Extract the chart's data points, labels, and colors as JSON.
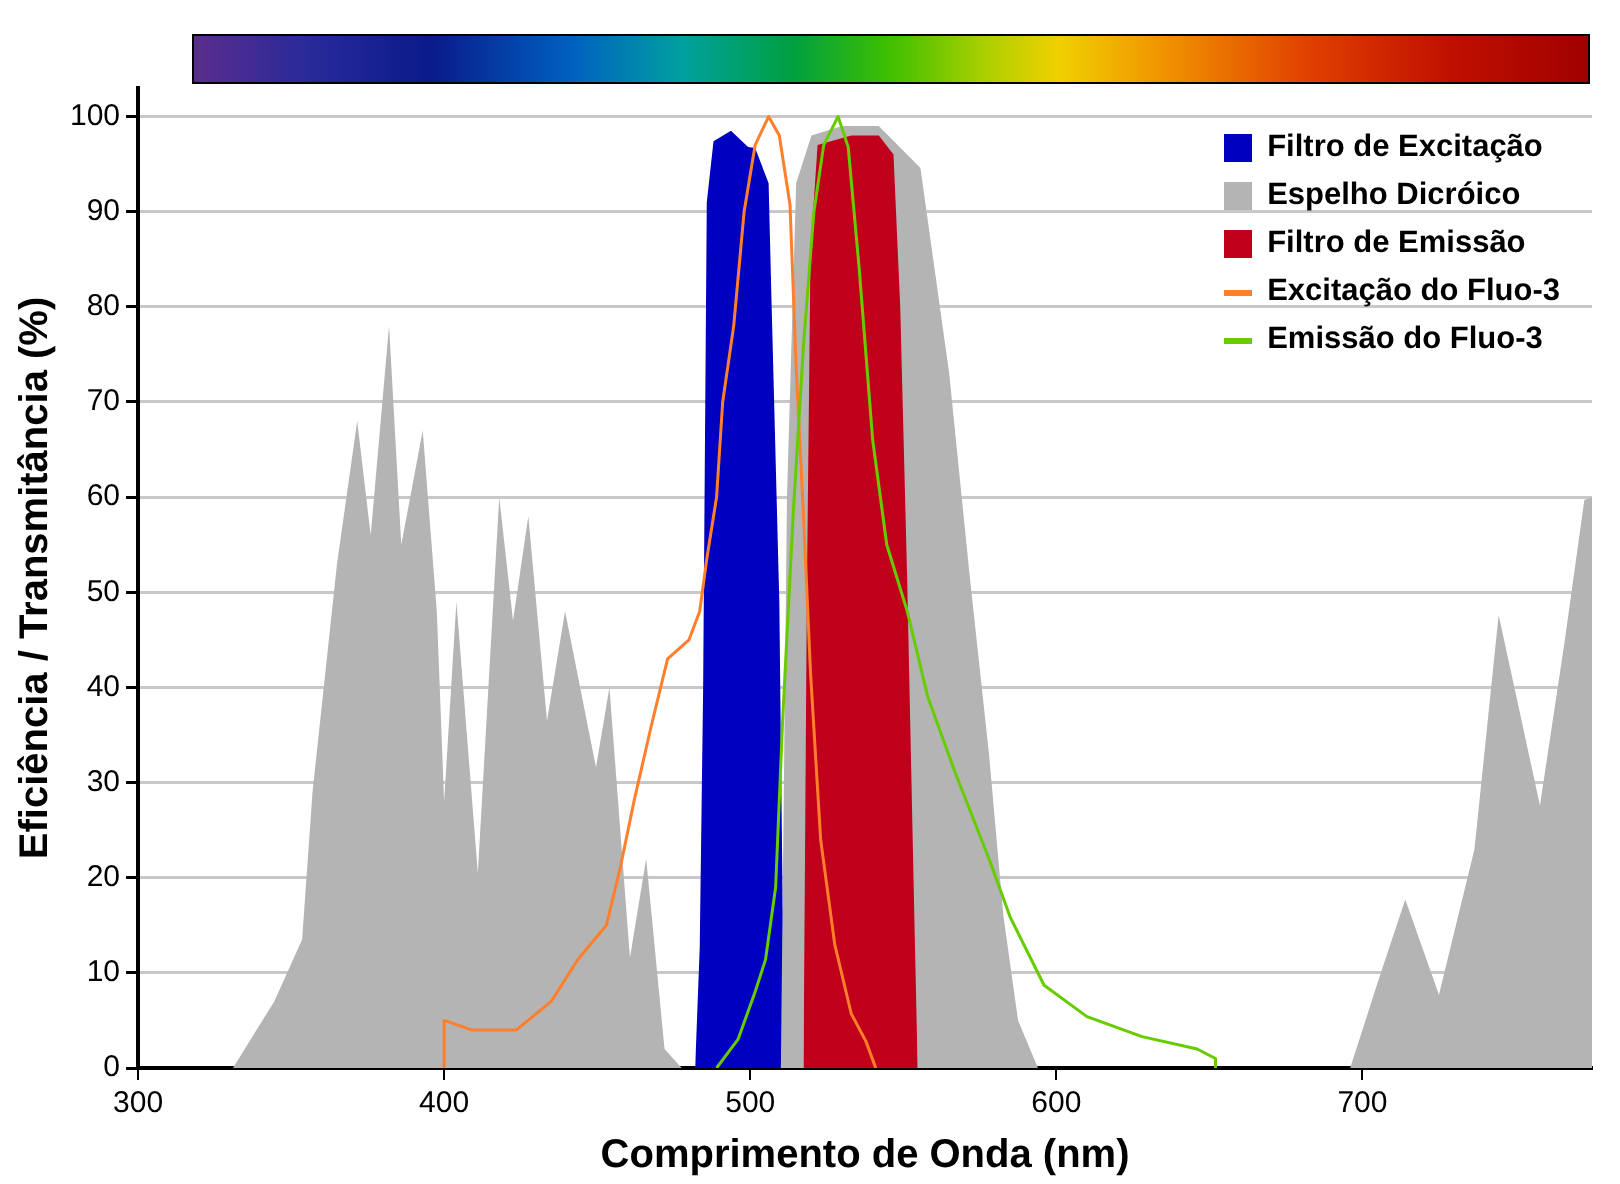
{
  "chart_data": {
    "type": "area",
    "xlabel": "Comprimento de Onda (nm)",
    "ylabel": "Eficiência / Transmitância (%)",
    "xlim": [
      300,
      775
    ],
    "xticks": [
      300,
      400,
      500,
      600,
      700
    ],
    "ylim": [
      0,
      103
    ],
    "yticks": [
      0,
      10,
      20,
      30,
      40,
      50,
      60,
      70,
      80,
      90,
      100
    ],
    "grid": "y",
    "legend": "top right",
    "series": [
      {
        "name": "Filtro de Excitação",
        "color": "#0000c0",
        "x": [
          482,
          483.5,
          484.6,
          485.8,
          488,
          493.7,
          499.3,
          501.6,
          506,
          507,
          509.5,
          510.6,
          513
        ],
        "values": [
          0,
          12.7,
          39.7,
          91,
          97.4,
          98.5,
          96.8,
          96.7,
          93,
          80,
          49,
          17,
          0
        ]
      },
      {
        "name": "Espelho Dicróico",
        "color": "#b4b4b4",
        "x": [
          331,
          344.5,
          353.6,
          357,
          365,
          371.6,
          376,
          382,
          386,
          393,
          397.6,
          400,
          404,
          411,
          418,
          422.5,
          427.5,
          433.6,
          439.5,
          449.6,
          454,
          460.7,
          466,
          472,
          477.6,
          510,
          512,
          515,
          520,
          530,
          542,
          555.6,
          565,
          571.6,
          578,
          582.7,
          587.5,
          594,
          696,
          705,
          714,
          725,
          736.6,
          744.5,
          758,
          766,
          772.5,
          775
        ],
        "values": [
          0,
          7,
          13.5,
          29,
          53,
          68,
          56,
          78,
          55,
          67,
          48,
          28,
          49,
          20.5,
          60,
          47,
          58,
          36.5,
          48,
          31.6,
          40,
          11.6,
          22,
          2,
          0,
          0,
          60,
          93,
          98,
          99,
          99,
          94.6,
          73,
          52,
          33,
          16,
          5,
          0,
          0,
          9,
          17.7,
          7.7,
          23,
          47.6,
          27.6,
          44.7,
          59.7,
          60
        ]
      },
      {
        "name": "Filtro de Emissão",
        "color": "#c0001a",
        "x": [
          517.4,
          518.5,
          519.7,
          522,
          533,
          542,
          546.8,
          549,
          551.3,
          553.6,
          554.7
        ],
        "values": [
          0,
          50,
          86,
          97,
          98,
          98,
          96,
          80,
          51,
          16,
          0
        ]
      },
      {
        "name": "Excitação do Fluo-3",
        "type": "line",
        "color": "#ff7f2a",
        "x": [
          400,
          400,
          409,
          423.6,
          435,
          443.7,
          453,
          457.5,
          462,
          467.7,
          473,
          480,
          483.5,
          485.8,
          489,
          491,
          494.6,
          498,
          501.6,
          506,
          509.5,
          513,
          515,
          517.4,
          519.7,
          523,
          527.6,
          533,
          537.8,
          541
        ],
        "values": [
          0,
          5,
          4,
          4,
          7,
          11.4,
          15,
          21,
          28,
          36,
          43,
          45,
          48,
          53.5,
          60,
          70,
          78,
          90,
          97,
          100,
          98,
          90.7,
          73.6,
          58,
          41.5,
          24,
          13,
          5.7,
          2.8,
          0
        ]
      },
      {
        "name": "Emissão do Fluo-3",
        "type": "line",
        "color": "#66cc00",
        "x": [
          489,
          496,
          501.6,
          505,
          508.3,
          510.6,
          514,
          517.4,
          520.8,
          524,
          528.7,
          532,
          535.6,
          540,
          544.6,
          551.3,
          558,
          567,
          578,
          585,
          596,
          610,
          628,
          646,
          652,
          652
        ],
        "values": [
          0,
          3,
          8,
          11.4,
          19,
          36.7,
          58,
          76,
          90,
          97,
          100,
          96.8,
          84,
          66,
          55,
          48,
          39,
          31,
          22,
          15.8,
          8.7,
          5.4,
          3.3,
          2,
          1,
          0
        ]
      }
    ]
  }
}
